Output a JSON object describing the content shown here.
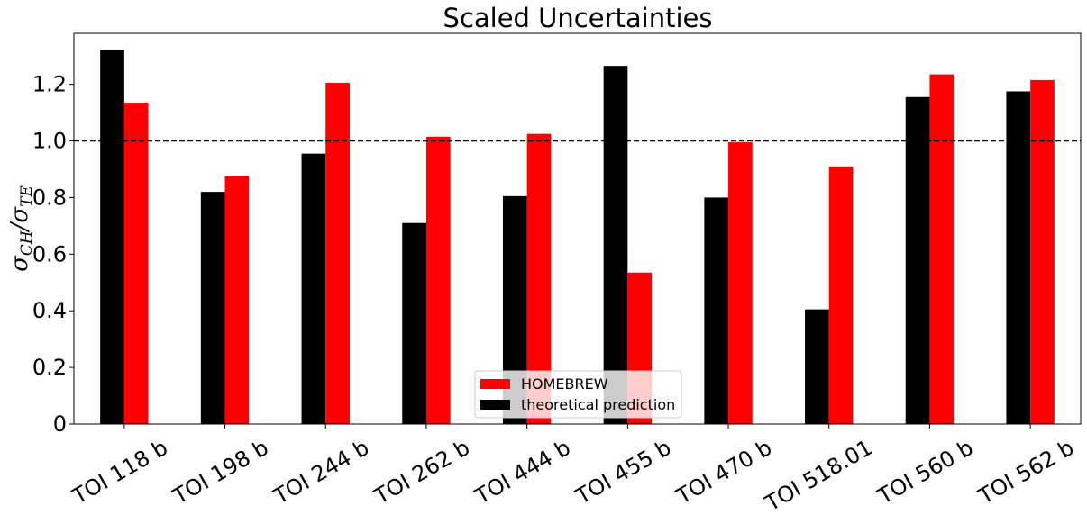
{
  "chart_data": {
    "type": "bar",
    "title": "Scaled Uncertainties",
    "ylabel": "σCH/σTE",
    "ylabel_parts": {
      "sym1": "σ",
      "sub1": "CH",
      "slash": "/",
      "sym2": "σ",
      "sub2": "TE"
    },
    "xlabel": "",
    "categories": [
      "TOI 118 b",
      "TOI 198 b",
      "TOI 244 b",
      "TOI 262 b",
      "TOI 444 b",
      "TOI 455 b",
      "TOI 470 b",
      "TOI 518.01",
      "TOI 560 b",
      "TOI 562 b"
    ],
    "series": [
      {
        "name": "theoretical prediction",
        "color": "#000000",
        "values": [
          1.32,
          0.82,
          0.955,
          0.71,
          0.805,
          1.265,
          0.8,
          0.405,
          1.155,
          1.175
        ]
      },
      {
        "name": "HOMEBREW",
        "color": "#ff0000",
        "values": [
          1.135,
          0.875,
          1.205,
          1.015,
          1.025,
          0.535,
          0.995,
          0.91,
          1.235,
          1.215
        ]
      }
    ],
    "ylim": [
      0,
      1.38
    ],
    "yticks": [
      0,
      0.2,
      0.4,
      0.6,
      0.8,
      1.0,
      1.2
    ],
    "ytick_labels": [
      "0",
      "0.2",
      "0.4",
      "0.6",
      "0.8",
      "1.0",
      "1.2"
    ],
    "reference_line": {
      "y": 1.0,
      "style": "dashed",
      "color": "#000000"
    },
    "legend": {
      "placement": "lower-center",
      "order": [
        "HOMEBREW",
        "theoretical prediction"
      ]
    },
    "grid": false
  }
}
